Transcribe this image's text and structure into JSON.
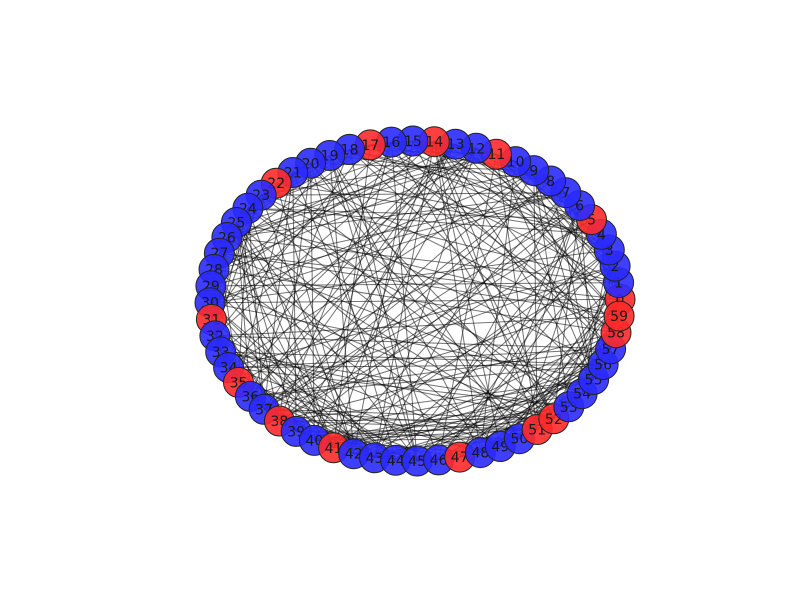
{
  "graph": {
    "colors": {
      "red": "#ff2a2a",
      "blue": "#2a2aff",
      "edge": "#000000",
      "outline": "#222222"
    },
    "nodes": [
      {
        "id": 0,
        "label": "0",
        "group": "red"
      },
      {
        "id": 1,
        "label": "1",
        "group": "blue"
      },
      {
        "id": 2,
        "label": "2",
        "group": "blue"
      },
      {
        "id": 3,
        "label": "3",
        "group": "blue"
      },
      {
        "id": 4,
        "label": "4",
        "group": "blue"
      },
      {
        "id": 5,
        "label": "5",
        "group": "red"
      },
      {
        "id": 6,
        "label": "6",
        "group": "blue"
      },
      {
        "id": 7,
        "label": "7",
        "group": "blue"
      },
      {
        "id": 8,
        "label": "8",
        "group": "blue"
      },
      {
        "id": 9,
        "label": "9",
        "group": "blue"
      },
      {
        "id": 10,
        "label": "10",
        "group": "blue"
      },
      {
        "id": 11,
        "label": "11",
        "group": "red"
      },
      {
        "id": 12,
        "label": "12",
        "group": "blue"
      },
      {
        "id": 13,
        "label": "13",
        "group": "blue"
      },
      {
        "id": 14,
        "label": "14",
        "group": "red"
      },
      {
        "id": 15,
        "label": "15",
        "group": "blue"
      },
      {
        "id": 16,
        "label": "16",
        "group": "blue"
      },
      {
        "id": 17,
        "label": "17",
        "group": "red"
      },
      {
        "id": 18,
        "label": "18",
        "group": "blue"
      },
      {
        "id": 19,
        "label": "19",
        "group": "blue"
      },
      {
        "id": 20,
        "label": "20",
        "group": "blue"
      },
      {
        "id": 21,
        "label": "21",
        "group": "blue"
      },
      {
        "id": 22,
        "label": "22",
        "group": "red"
      },
      {
        "id": 23,
        "label": "23",
        "group": "blue"
      },
      {
        "id": 24,
        "label": "24",
        "group": "blue"
      },
      {
        "id": 25,
        "label": "25",
        "group": "blue"
      },
      {
        "id": 26,
        "label": "26",
        "group": "blue"
      },
      {
        "id": 27,
        "label": "27",
        "group": "blue"
      },
      {
        "id": 28,
        "label": "28",
        "group": "blue"
      },
      {
        "id": 29,
        "label": "29",
        "group": "blue"
      },
      {
        "id": 30,
        "label": "30",
        "group": "blue"
      },
      {
        "id": 31,
        "label": "31",
        "group": "red"
      },
      {
        "id": 32,
        "label": "32",
        "group": "blue"
      },
      {
        "id": 33,
        "label": "33",
        "group": "blue"
      },
      {
        "id": 34,
        "label": "34",
        "group": "blue"
      },
      {
        "id": 35,
        "label": "35",
        "group": "red"
      },
      {
        "id": 36,
        "label": "36",
        "group": "blue"
      },
      {
        "id": 37,
        "label": "37",
        "group": "blue"
      },
      {
        "id": 38,
        "label": "38",
        "group": "red"
      },
      {
        "id": 39,
        "label": "39",
        "group": "blue"
      },
      {
        "id": 40,
        "label": "40",
        "group": "blue"
      },
      {
        "id": 41,
        "label": "41",
        "group": "red"
      },
      {
        "id": 42,
        "label": "42",
        "group": "blue"
      },
      {
        "id": 43,
        "label": "43",
        "group": "blue"
      },
      {
        "id": 44,
        "label": "44",
        "group": "blue"
      },
      {
        "id": 45,
        "label": "45",
        "group": "blue"
      },
      {
        "id": 46,
        "label": "46",
        "group": "blue"
      },
      {
        "id": 47,
        "label": "47",
        "group": "red"
      },
      {
        "id": 48,
        "label": "48",
        "group": "blue"
      },
      {
        "id": 49,
        "label": "49",
        "group": "blue"
      },
      {
        "id": 50,
        "label": "50",
        "group": "blue"
      },
      {
        "id": 51,
        "label": "51",
        "group": "red"
      },
      {
        "id": 52,
        "label": "52",
        "group": "red"
      },
      {
        "id": 53,
        "label": "53",
        "group": "blue"
      },
      {
        "id": 54,
        "label": "54",
        "group": "blue"
      },
      {
        "id": 55,
        "label": "55",
        "group": "blue"
      },
      {
        "id": 56,
        "label": "56",
        "group": "blue"
      },
      {
        "id": 57,
        "label": "57",
        "group": "blue"
      },
      {
        "id": 58,
        "label": "58",
        "group": "red"
      },
      {
        "id": 59,
        "label": "59",
        "group": "red"
      }
    ]
  }
}
